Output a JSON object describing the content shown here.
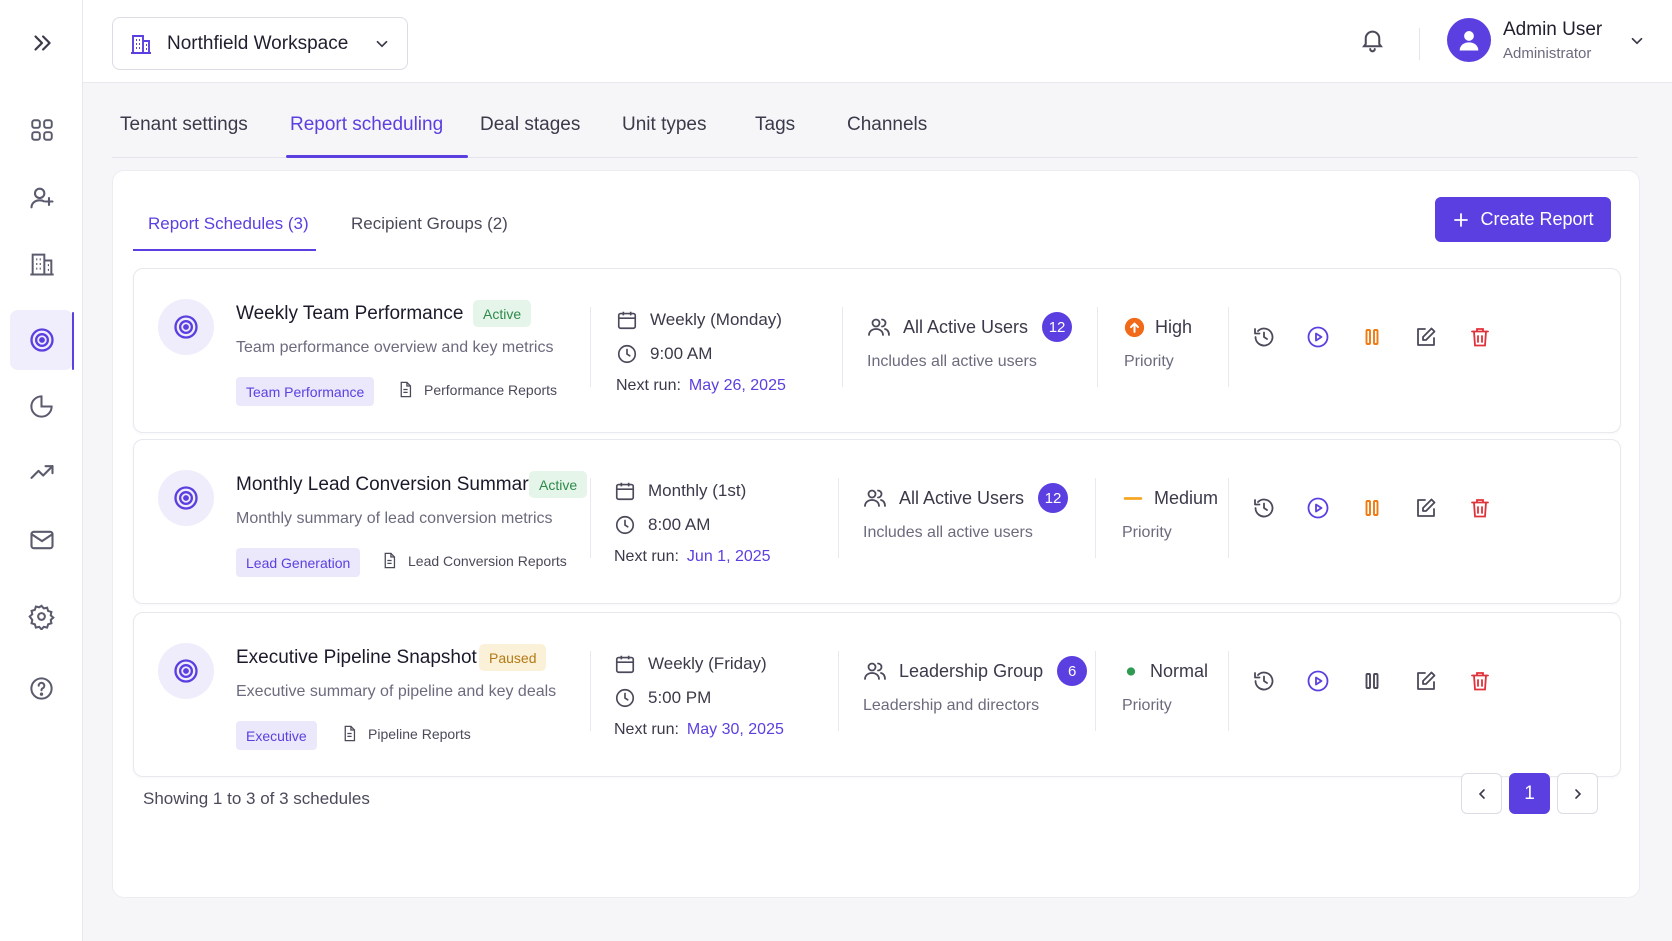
{
  "sidebar": {
    "items": [
      {
        "icon": "expand-icon"
      },
      {
        "icon": "dashboard-icon"
      },
      {
        "icon": "add-user-icon"
      },
      {
        "icon": "building-icon"
      },
      {
        "icon": "target-icon",
        "active": true
      },
      {
        "icon": "pie-chart-icon"
      },
      {
        "icon": "trending-up-icon"
      },
      {
        "icon": "mail-icon"
      },
      {
        "icon": "gear-icon"
      },
      {
        "icon": "help-icon"
      }
    ]
  },
  "header": {
    "workspace": "Northfield Workspace",
    "user_name": "Admin User",
    "user_role": "Administrator"
  },
  "tabs": [
    "Tenant settings",
    "Report scheduling",
    "Deal stages",
    "Unit types",
    "Tags",
    "Channels"
  ],
  "active_tab": "Report scheduling",
  "subtabs": [
    "Report Schedules (3)",
    "Recipient Groups (2)"
  ],
  "create_button": "Create Report",
  "next_run_label": "Next run:",
  "priority_label": "Priority",
  "schedules": [
    {
      "title": "Weekly Team Performance",
      "status": "Active",
      "description": "Team performance overview and key metrics",
      "tag": "Team Performance",
      "report_type": "Performance Reports",
      "frequency": "Weekly (Monday)",
      "time": "9:00 AM",
      "next_run": "May 26, 2025",
      "recipients": "All Active Users",
      "recipient_count": "12",
      "recipient_desc": "Includes all active users",
      "priority": "High"
    },
    {
      "title": "Monthly Lead Conversion Summary",
      "status": "Active",
      "description": "Monthly summary of lead conversion metrics",
      "tag": "Lead Generation",
      "report_type": "Lead Conversion Reports",
      "frequency": "Monthly (1st)",
      "time": "8:00 AM",
      "next_run": "Jun 1, 2025",
      "recipients": "All Active Users",
      "recipient_count": "12",
      "recipient_desc": "Includes all active users",
      "priority": "Medium"
    },
    {
      "title": "Executive Pipeline Snapshot",
      "status": "Paused",
      "description": "Executive summary of pipeline and key deals",
      "tag": "Executive",
      "report_type": "Pipeline Reports",
      "frequency": "Weekly (Friday)",
      "time": "5:00 PM",
      "next_run": "May 30, 2025",
      "recipients": "Leadership Group",
      "recipient_count": "6",
      "recipient_desc": "Leadership and directors",
      "priority": "Normal"
    }
  ],
  "footer": {
    "showing": "Showing 1 to 3 of 3 schedules",
    "current_page": "1"
  },
  "colors": {
    "accent": "#5b3fe0",
    "high": "#f06a1a",
    "medium": "#f5a623",
    "normal": "#2e9a52",
    "pause_active": "#f07a10",
    "delete": "#e0323a"
  }
}
